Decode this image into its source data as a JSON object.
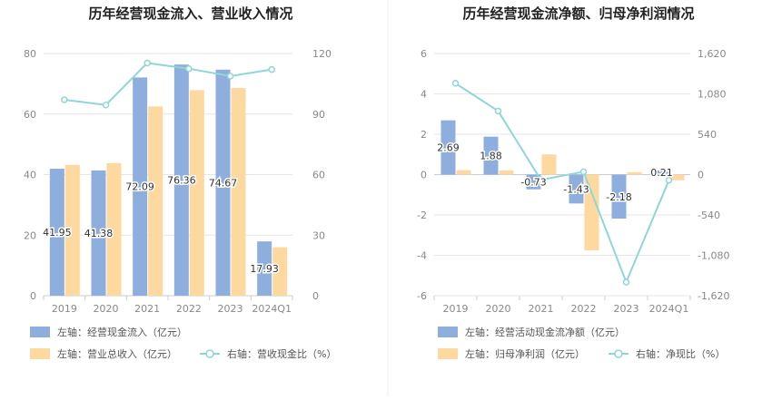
{
  "chart_data": [
    {
      "type": "bar",
      "title": "历年经营现金流入、营业收入情况",
      "categories": [
        "2019",
        "2020",
        "2021",
        "2022",
        "2023",
        "2024Q1"
      ],
      "ylim_left": [
        0,
        80
      ],
      "yticks_left": [
        0,
        20,
        40,
        60,
        80
      ],
      "ylim_right": [
        0,
        120
      ],
      "yticks_right": [
        0,
        30,
        60,
        90,
        120
      ],
      "series": [
        {
          "name": "左轴：经营现金流入（亿元）",
          "axis": "left",
          "kind": "bar",
          "color": "#8eaedd",
          "values": [
            41.95,
            41.38,
            72.09,
            76.36,
            74.67,
            17.93
          ],
          "labels": [
            "41.95",
            "41.38",
            "72.09",
            "76.36",
            "74.67",
            "17.93"
          ]
        },
        {
          "name": "左轴：营业总收入（亿元）",
          "axis": "left",
          "kind": "bar",
          "color": "#fdd9a0",
          "values": [
            43.2,
            43.8,
            62.5,
            67.9,
            68.6,
            16.0
          ]
        },
        {
          "name": "右轴：营收现金比（%）",
          "axis": "right",
          "kind": "line",
          "color": "#8fd6d6",
          "values": [
            97.1,
            94.5,
            115.3,
            112.5,
            108.8,
            112.1
          ]
        }
      ],
      "grid": true,
      "legend_position": "bottom"
    },
    {
      "type": "bar",
      "title": "历年经营现金流净额、归母净利润情况",
      "categories": [
        "2019",
        "2020",
        "2021",
        "2022",
        "2023",
        "2024Q1"
      ],
      "ylim_left": [
        -6,
        6
      ],
      "yticks_left": [
        -6,
        -4,
        -2,
        0,
        2,
        4,
        6
      ],
      "ylim_right": [
        -1620,
        1620
      ],
      "yticks_right": [
        -1620,
        -1080,
        -540,
        0,
        540,
        1080,
        1620
      ],
      "series": [
        {
          "name": "左轴：经营活动现金流净额（亿元）",
          "axis": "left",
          "kind": "bar",
          "color": "#8eaedd",
          "values": [
            2.69,
            1.88,
            -0.73,
            -1.43,
            -2.18,
            0.21
          ],
          "labels": [
            "2.69",
            "1.88",
            "-0.73",
            "-1.43",
            "-2.18",
            "0.21"
          ]
        },
        {
          "name": "左轴：归母净利润（亿元）",
          "axis": "left",
          "kind": "bar",
          "color": "#fdd9a0",
          "values": [
            0.22,
            0.21,
            1.0,
            -3.75,
            0.12,
            -0.28
          ]
        },
        {
          "name": "右轴：净现比（%）",
          "axis": "right",
          "kind": "line",
          "color": "#8fd6d6",
          "values": [
            1222,
            850,
            -70,
            38,
            -1438,
            -75
          ]
        }
      ],
      "grid": true,
      "legend_position": "bottom"
    }
  ]
}
